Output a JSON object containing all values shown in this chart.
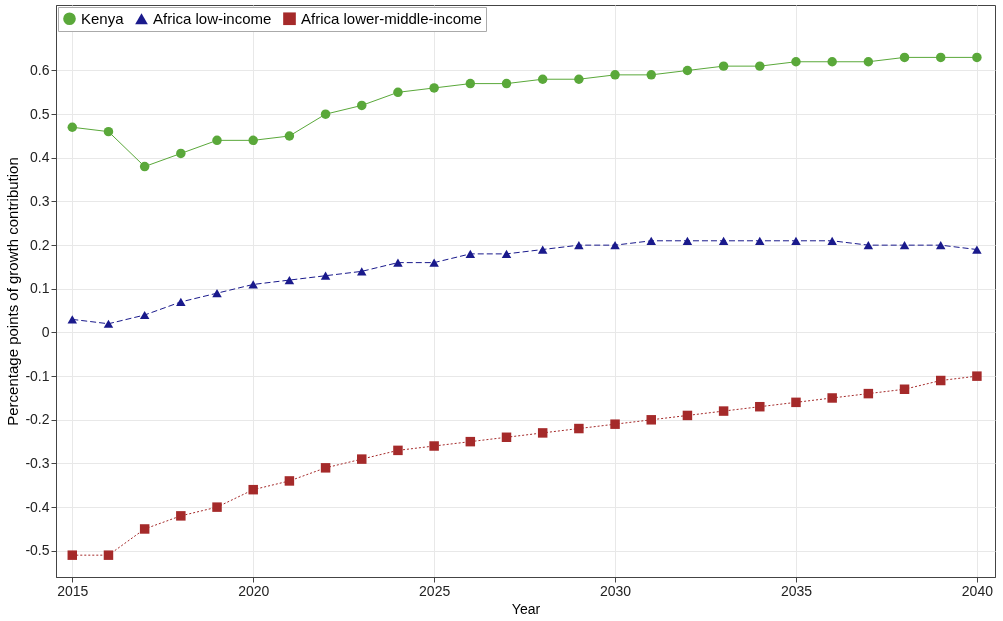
{
  "chart_data": {
    "type": "line",
    "xlabel": "Year",
    "ylabel": "Percentage points of growth contribution",
    "x": [
      2015,
      2016,
      2017,
      2018,
      2019,
      2020,
      2021,
      2022,
      2023,
      2024,
      2025,
      2026,
      2027,
      2028,
      2029,
      2030,
      2031,
      2032,
      2033,
      2034,
      2035,
      2036,
      2037,
      2038,
      2039,
      2040
    ],
    "series": [
      {
        "name": "Kenya",
        "color": "#5aa83a",
        "marker": "circle",
        "line_style": "solid",
        "values": [
          0.47,
          0.46,
          0.38,
          0.41,
          0.44,
          0.44,
          0.45,
          0.5,
          0.52,
          0.55,
          0.56,
          0.57,
          0.57,
          0.58,
          0.58,
          0.59,
          0.59,
          0.6,
          0.61,
          0.61,
          0.62,
          0.62,
          0.62,
          0.63,
          0.63,
          0.63
        ]
      },
      {
        "name": "Africa low-income",
        "color": "#1a1a8c",
        "marker": "triangle",
        "line_style": "dashed",
        "values": [
          0.03,
          0.02,
          0.04,
          0.07,
          0.09,
          0.11,
          0.12,
          0.13,
          0.14,
          0.16,
          0.16,
          0.18,
          0.18,
          0.19,
          0.2,
          0.2,
          0.21,
          0.21,
          0.21,
          0.21,
          0.21,
          0.21,
          0.2,
          0.2,
          0.2,
          0.19
        ]
      },
      {
        "name": "Africa lower-middle-income",
        "color": "#a52a2a",
        "marker": "square",
        "line_style": "dotted",
        "values": [
          -0.51,
          -0.51,
          -0.45,
          -0.42,
          -0.4,
          -0.36,
          -0.34,
          -0.31,
          -0.29,
          -0.27,
          -0.26,
          -0.25,
          -0.24,
          -0.23,
          -0.22,
          -0.21,
          -0.2,
          -0.19,
          -0.18,
          -0.17,
          -0.16,
          -0.15,
          -0.14,
          -0.13,
          -0.11,
          -0.1
        ]
      }
    ],
    "xlim": [
      2014.55,
      2040.5
    ],
    "xticks": [
      2015,
      2020,
      2025,
      2030,
      2035,
      2040
    ],
    "ylim": [
      -0.56,
      0.75
    ],
    "yticks": [
      -0.5,
      -0.4,
      -0.3,
      -0.2,
      -0.1,
      0,
      0.1,
      0.2,
      0.3,
      0.4,
      0.5,
      0.6
    ],
    "grid": true,
    "legend": "top left"
  }
}
